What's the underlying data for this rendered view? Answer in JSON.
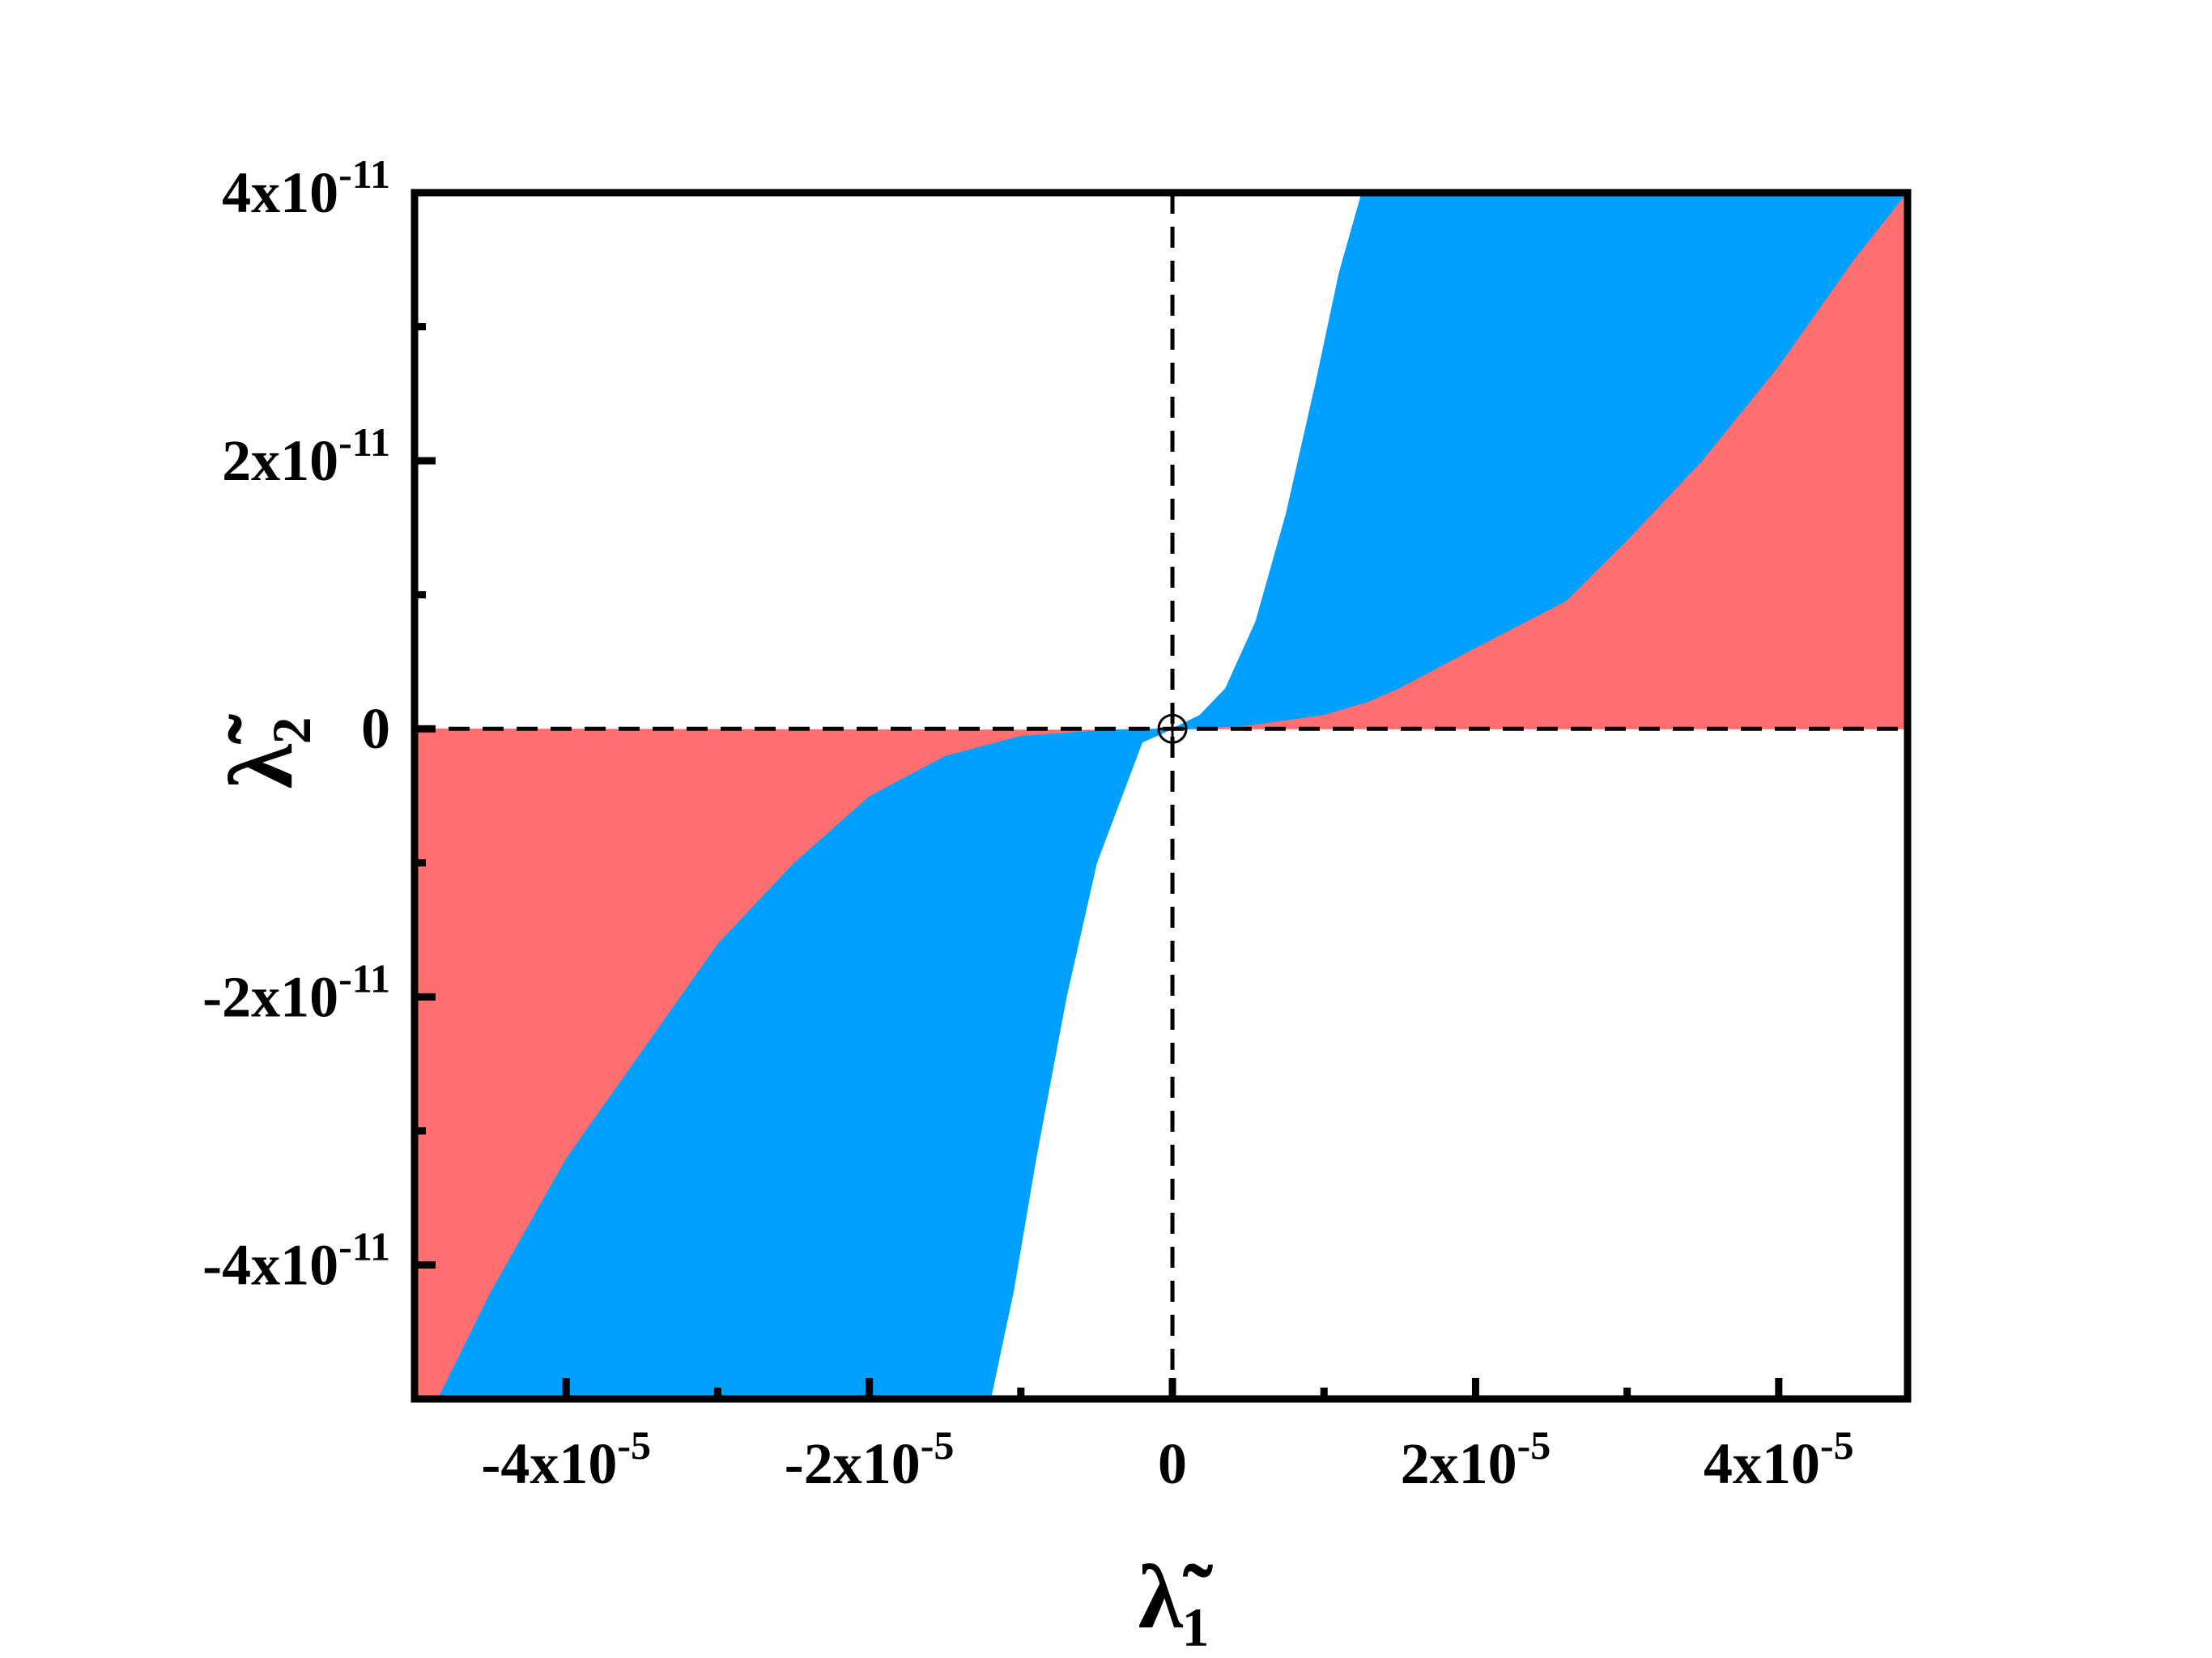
{
  "chart_data": {
    "type": "area",
    "xlabel": "λ̃₁",
    "ylabel": "λ̃₂",
    "xlim": [
      -5e-05,
      4.85e-05
    ],
    "ylim": [
      -5e-11,
      4e-11
    ],
    "x_ticks": [
      {
        "value": -4e-05,
        "mantissa": "-4x10",
        "exp": "-5"
      },
      {
        "value": -2e-05,
        "mantissa": "-2x10",
        "exp": "-5"
      },
      {
        "value": 0,
        "mantissa": "0",
        "exp": ""
      },
      {
        "value": 2e-05,
        "mantissa": "2x10",
        "exp": "-5"
      },
      {
        "value": 4e-05,
        "mantissa": "4x10",
        "exp": "-5"
      }
    ],
    "x_minor_ticks": [
      -3e-05,
      -1e-05,
      1e-05,
      3e-05
    ],
    "y_ticks": [
      {
        "value": 4e-11,
        "mantissa": "4x10",
        "exp": "-11"
      },
      {
        "value": 2e-11,
        "mantissa": "2x10",
        "exp": "-11"
      },
      {
        "value": 0,
        "mantissa": "0",
        "exp": ""
      },
      {
        "value": -2e-11,
        "mantissa": "-2x10",
        "exp": "-11"
      },
      {
        "value": -4e-11,
        "mantissa": "-4x10",
        "exp": "-11"
      }
    ],
    "y_minor_ticks": [
      3e-11,
      1e-11,
      -1e-11,
      -3e-11
    ],
    "grid": false,
    "colors": {
      "blue_region": "#00a0ff",
      "red_region": "#ff6f6f",
      "dashed_lines": "#000000"
    },
    "regions": [
      {
        "name": "",
        "color": "#00a0ff",
        "polygon": [
          [
            0,
            0
          ],
          [
            1.8e-06,
            1e-12
          ],
          [
            3.5e-06,
            3e-12
          ],
          [
            5.5e-06,
            8e-12
          ],
          [
            7.5e-06,
            1.6e-11
          ],
          [
            9.5e-06,
            2.6e-11
          ],
          [
            1.1e-05,
            3.4e-11
          ],
          [
            1.25e-05,
            4e-11
          ],
          [
            4.85e-05,
            4e-11
          ],
          [
            4.5e-05,
            3.5e-11
          ],
          [
            4e-05,
            2.7e-11
          ],
          [
            3.5e-05,
            2e-11
          ],
          [
            3e-05,
            1.4e-11
          ],
          [
            2.6e-05,
            9.5e-12
          ],
          [
            2e-05,
            6e-12
          ],
          [
            1.5e-05,
            3e-12
          ],
          [
            1.3e-05,
            2e-12
          ],
          [
            1e-05,
            1e-12
          ],
          [
            5e-06,
            2e-13
          ],
          [
            2e-06,
            0
          ]
        ]
      },
      {
        "name": "",
        "color": "#ff6f6f",
        "polygon": [
          [
            2e-06,
            0
          ],
          [
            5e-06,
            2e-13
          ],
          [
            1e-05,
            1e-12
          ],
          [
            1.3e-05,
            2e-12
          ],
          [
            1.5e-05,
            3e-12
          ],
          [
            2e-05,
            6e-12
          ],
          [
            2.6e-05,
            9.5e-12
          ],
          [
            3e-05,
            1.4e-11
          ],
          [
            3.5e-05,
            2e-11
          ],
          [
            4e-05,
            2.7e-11
          ],
          [
            4.5e-05,
            3.5e-11
          ],
          [
            4.85e-05,
            4e-11
          ],
          [
            4.85e-05,
            0
          ]
        ]
      },
      {
        "name": "",
        "color": "#00a0ff",
        "polygon": [
          [
            0,
            0
          ],
          [
            -2e-06,
            -1e-12
          ],
          [
            -3e-06,
            -4e-12
          ],
          [
            -5e-06,
            -1e-11
          ],
          [
            -7e-06,
            -2e-11
          ],
          [
            -9e-06,
            -3.2e-11
          ],
          [
            -1.05e-05,
            -4.2e-11
          ],
          [
            -1.2e-05,
            -5e-11
          ],
          [
            -4.85e-05,
            -5e-11
          ],
          [
            -4.5e-05,
            -4.2e-11
          ],
          [
            -4e-05,
            -3.2e-11
          ],
          [
            -3.5e-05,
            -2.4e-11
          ],
          [
            -3e-05,
            -1.6e-11
          ],
          [
            -2.5e-05,
            -1e-11
          ],
          [
            -2e-05,
            -5e-12
          ],
          [
            -1.5e-05,
            -2e-12
          ],
          [
            -1e-05,
            -5e-13
          ],
          [
            -5e-06,
            -1e-13
          ]
        ]
      },
      {
        "name": "",
        "color": "#ff6f6f",
        "polygon": [
          [
            -5e-06,
            -1e-13
          ],
          [
            -1e-05,
            -5e-13
          ],
          [
            -1.5e-05,
            -2e-12
          ],
          [
            -2e-05,
            -5e-12
          ],
          [
            -2.5e-05,
            -1e-11
          ],
          [
            -3e-05,
            -1.6e-11
          ],
          [
            -3.5e-05,
            -2.4e-11
          ],
          [
            -4e-05,
            -3.2e-11
          ],
          [
            -4.5e-05,
            -4.2e-11
          ],
          [
            -4.85e-05,
            -5e-11
          ],
          [
            -5e-05,
            -5e-11
          ],
          [
            -5e-05,
            0
          ]
        ]
      }
    ],
    "marker": {
      "x": 0,
      "y": 0,
      "symbol": "circled-plus"
    }
  }
}
